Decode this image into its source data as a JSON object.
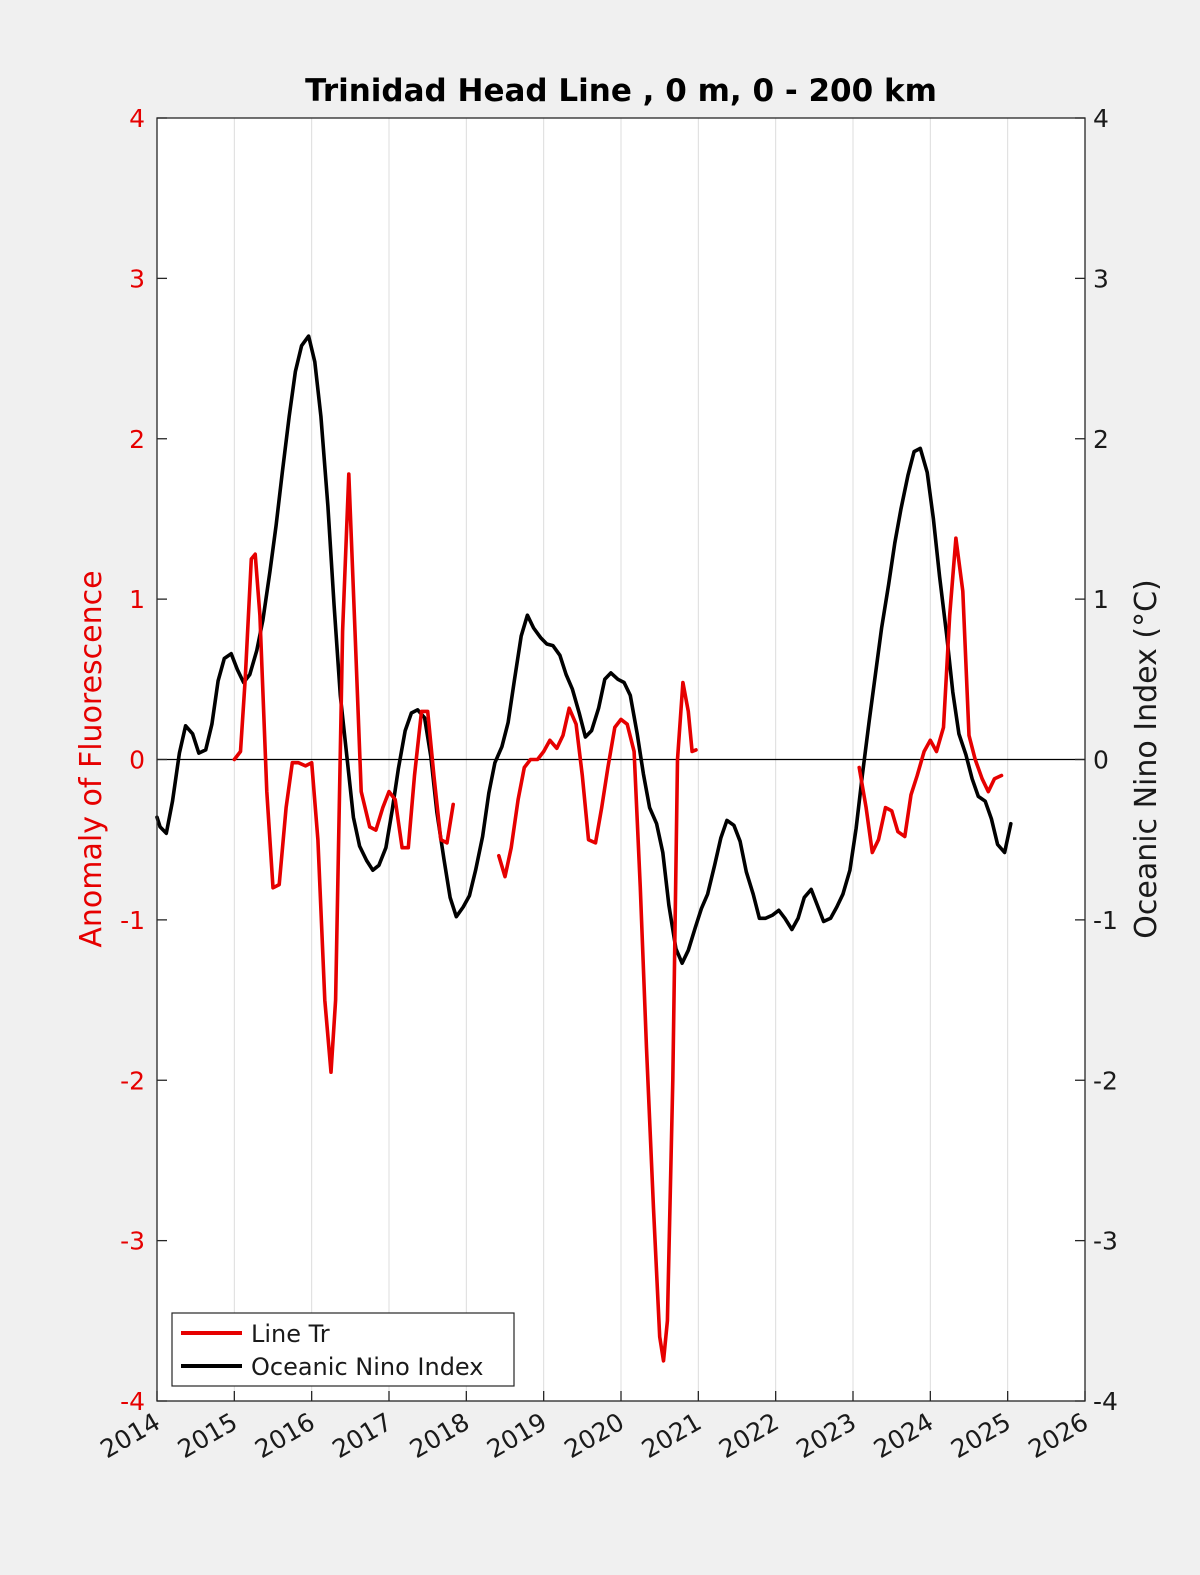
{
  "chart_data": {
    "type": "line",
    "title": "Trinidad Head Line , 0 m, 0 - 200 km",
    "ylabel_left": "Anomaly of Fluorescence",
    "ylabel_right": "Oceanic Nino Index (°C)",
    "xlim": [
      2014,
      2026
    ],
    "ylim_left": [
      -4,
      4
    ],
    "ylim_right": [
      -4,
      4
    ],
    "x_ticks": [
      "2014",
      "2015",
      "2016",
      "2017",
      "2018",
      "2019",
      "2020",
      "2021",
      "2022",
      "2023",
      "2024",
      "2025",
      "2026"
    ],
    "y_ticks_left": [
      "4",
      "3",
      "2",
      "1",
      "0",
      "-1",
      "-2",
      "-3",
      "-4"
    ],
    "y_ticks_right": [
      "4",
      "3",
      "2",
      "1",
      "0",
      "-1",
      "-2",
      "-3",
      "-4"
    ],
    "vertical_grid": true,
    "zero_line": true,
    "legend_position": "bottom-left",
    "colors": {
      "line_tr": "#e60000",
      "oni": "#000000",
      "zero_line": "#000000",
      "grid": "#dcdcdc"
    },
    "series": [
      {
        "name": "Line Tr",
        "axis": "left",
        "segments": [
          [
            [
              2015.0,
              0.0
            ],
            [
              2015.08,
              0.05
            ],
            [
              2015.14,
              0.5
            ],
            [
              2015.22,
              1.25
            ],
            [
              2015.27,
              1.28
            ],
            [
              2015.33,
              0.9
            ],
            [
              2015.42,
              -0.2
            ],
            [
              2015.5,
              -0.8
            ],
            [
              2015.58,
              -0.78
            ],
            [
              2015.67,
              -0.3
            ],
            [
              2015.75,
              -0.02
            ],
            [
              2015.83,
              -0.02
            ],
            [
              2015.92,
              -0.04
            ],
            [
              2016.0,
              -0.02
            ],
            [
              2016.08,
              -0.5
            ],
            [
              2016.17,
              -1.5
            ],
            [
              2016.25,
              -1.95
            ],
            [
              2016.31,
              -1.5
            ],
            [
              2016.4,
              0.8
            ],
            [
              2016.48,
              1.78
            ],
            [
              2016.56,
              0.8
            ],
            [
              2016.64,
              -0.2
            ],
            [
              2016.75,
              -0.42
            ],
            [
              2016.83,
              -0.44
            ],
            [
              2016.92,
              -0.3
            ],
            [
              2017.0,
              -0.2
            ],
            [
              2017.08,
              -0.25
            ],
            [
              2017.17,
              -0.55
            ],
            [
              2017.25,
              -0.55
            ],
            [
              2017.33,
              -0.1
            ],
            [
              2017.42,
              0.3
            ],
            [
              2017.5,
              0.3
            ],
            [
              2017.58,
              -0.1
            ],
            [
              2017.67,
              -0.5
            ],
            [
              2017.75,
              -0.52
            ],
            [
              2017.83,
              -0.28
            ]
          ],
          [
            [
              2018.42,
              -0.6
            ],
            [
              2018.5,
              -0.73
            ],
            [
              2018.58,
              -0.55
            ],
            [
              2018.67,
              -0.25
            ],
            [
              2018.75,
              -0.05
            ],
            [
              2018.83,
              0.0
            ],
            [
              2018.92,
              0.0
            ],
            [
              2019.0,
              0.05
            ],
            [
              2019.08,
              0.12
            ],
            [
              2019.17,
              0.07
            ],
            [
              2019.25,
              0.15
            ],
            [
              2019.33,
              0.32
            ],
            [
              2019.42,
              0.22
            ],
            [
              2019.5,
              -0.1
            ],
            [
              2019.58,
              -0.5
            ],
            [
              2019.67,
              -0.52
            ],
            [
              2019.75,
              -0.3
            ],
            [
              2019.83,
              -0.05
            ],
            [
              2019.92,
              0.2
            ],
            [
              2020.0,
              0.25
            ],
            [
              2020.08,
              0.22
            ],
            [
              2020.17,
              0.05
            ],
            [
              2020.25,
              -0.8
            ],
            [
              2020.33,
              -1.8
            ],
            [
              2020.42,
              -2.8
            ],
            [
              2020.5,
              -3.6
            ],
            [
              2020.55,
              -3.75
            ],
            [
              2020.6,
              -3.5
            ],
            [
              2020.67,
              -2.0
            ],
            [
              2020.73,
              0.0
            ],
            [
              2020.8,
              0.48
            ],
            [
              2020.87,
              0.3
            ],
            [
              2020.92,
              0.05
            ],
            [
              2020.97,
              0.06
            ]
          ],
          [
            [
              2023.08,
              -0.05
            ],
            [
              2023.17,
              -0.3
            ],
            [
              2023.25,
              -0.58
            ],
            [
              2023.33,
              -0.5
            ],
            [
              2023.42,
              -0.3
            ],
            [
              2023.5,
              -0.32
            ],
            [
              2023.58,
              -0.45
            ],
            [
              2023.67,
              -0.48
            ],
            [
              2023.75,
              -0.22
            ],
            [
              2023.83,
              -0.1
            ],
            [
              2023.92,
              0.05
            ],
            [
              2024.0,
              0.12
            ],
            [
              2024.08,
              0.05
            ],
            [
              2024.17,
              0.2
            ],
            [
              2024.25,
              0.9
            ],
            [
              2024.33,
              1.38
            ],
            [
              2024.42,
              1.05
            ],
            [
              2024.5,
              0.15
            ],
            [
              2024.58,
              0.0
            ],
            [
              2024.67,
              -0.12
            ],
            [
              2024.75,
              -0.2
            ],
            [
              2024.83,
              -0.12
            ],
            [
              2024.92,
              -0.1
            ]
          ]
        ]
      },
      {
        "name": "Oceanic Nino Index",
        "axis": "right",
        "segments": [
          [
            [
              2014.0,
              -0.36
            ],
            [
              2014.04,
              -0.42
            ],
            [
              2014.12,
              -0.46
            ],
            [
              2014.2,
              -0.26
            ],
            [
              2014.29,
              0.04
            ],
            [
              2014.37,
              0.21
            ],
            [
              2014.46,
              0.16
            ],
            [
              2014.54,
              0.04
            ],
            [
              2014.63,
              0.06
            ],
            [
              2014.71,
              0.22
            ],
            [
              2014.79,
              0.49
            ],
            [
              2014.87,
              0.63
            ],
            [
              2014.96,
              0.66
            ],
            [
              2015.04,
              0.56
            ],
            [
              2015.12,
              0.48
            ],
            [
              2015.2,
              0.53
            ],
            [
              2015.29,
              0.68
            ],
            [
              2015.37,
              0.87
            ],
            [
              2015.46,
              1.17
            ],
            [
              2015.54,
              1.46
            ],
            [
              2015.62,
              1.79
            ],
            [
              2015.71,
              2.14
            ],
            [
              2015.79,
              2.42
            ],
            [
              2015.87,
              2.58
            ],
            [
              2015.96,
              2.64
            ],
            [
              2016.04,
              2.48
            ],
            [
              2016.12,
              2.14
            ],
            [
              2016.21,
              1.58
            ],
            [
              2016.29,
              0.96
            ],
            [
              2016.37,
              0.4
            ],
            [
              2016.46,
              0.0
            ],
            [
              2016.54,
              -0.36
            ],
            [
              2016.62,
              -0.54
            ],
            [
              2016.71,
              -0.63
            ],
            [
              2016.79,
              -0.69
            ],
            [
              2016.87,
              -0.66
            ],
            [
              2016.96,
              -0.55
            ],
            [
              2017.04,
              -0.32
            ],
            [
              2017.12,
              -0.06
            ],
            [
              2017.21,
              0.18
            ],
            [
              2017.29,
              0.29
            ],
            [
              2017.37,
              0.31
            ],
            [
              2017.46,
              0.26
            ],
            [
              2017.54,
              0.02
            ],
            [
              2017.62,
              -0.33
            ],
            [
              2017.71,
              -0.62
            ],
            [
              2017.79,
              -0.86
            ],
            [
              2017.87,
              -0.98
            ],
            [
              2017.96,
              -0.92
            ],
            [
              2018.04,
              -0.85
            ],
            [
              2018.12,
              -0.69
            ],
            [
              2018.21,
              -0.48
            ],
            [
              2018.29,
              -0.21
            ],
            [
              2018.37,
              -0.02
            ],
            [
              2018.46,
              0.08
            ],
            [
              2018.54,
              0.23
            ],
            [
              2018.62,
              0.49
            ],
            [
              2018.71,
              0.77
            ],
            [
              2018.79,
              0.9
            ],
            [
              2018.87,
              0.82
            ],
            [
              2018.96,
              0.76
            ],
            [
              2019.04,
              0.72
            ],
            [
              2019.12,
              0.71
            ],
            [
              2019.21,
              0.65
            ],
            [
              2019.29,
              0.53
            ],
            [
              2019.37,
              0.44
            ],
            [
              2019.46,
              0.29
            ],
            [
              2019.54,
              0.14
            ],
            [
              2019.62,
              0.18
            ],
            [
              2019.71,
              0.32
            ],
            [
              2019.79,
              0.5
            ],
            [
              2019.87,
              0.54
            ],
            [
              2019.96,
              0.5
            ],
            [
              2020.04,
              0.48
            ],
            [
              2020.12,
              0.4
            ],
            [
              2020.21,
              0.16
            ],
            [
              2020.29,
              -0.09
            ],
            [
              2020.37,
              -0.3
            ],
            [
              2020.46,
              -0.4
            ],
            [
              2020.54,
              -0.58
            ],
            [
              2020.62,
              -0.91
            ],
            [
              2020.71,
              -1.18
            ],
            [
              2020.79,
              -1.27
            ],
            [
              2020.87,
              -1.19
            ],
            [
              2020.96,
              -1.05
            ],
            [
              2021.04,
              -0.93
            ],
            [
              2021.12,
              -0.84
            ],
            [
              2021.21,
              -0.66
            ],
            [
              2021.29,
              -0.49
            ],
            [
              2021.37,
              -0.38
            ],
            [
              2021.46,
              -0.41
            ],
            [
              2021.54,
              -0.51
            ],
            [
              2021.62,
              -0.7
            ],
            [
              2021.71,
              -0.84
            ],
            [
              2021.79,
              -0.99
            ],
            [
              2021.87,
              -0.99
            ],
            [
              2021.96,
              -0.97
            ],
            [
              2022.04,
              -0.94
            ],
            [
              2022.12,
              -0.99
            ],
            [
              2022.21,
              -1.06
            ],
            [
              2022.29,
              -0.99
            ],
            [
              2022.37,
              -0.86
            ],
            [
              2022.46,
              -0.81
            ],
            [
              2022.54,
              -0.91
            ],
            [
              2022.62,
              -1.01
            ],
            [
              2022.71,
              -0.99
            ],
            [
              2022.79,
              -0.92
            ],
            [
              2022.87,
              -0.84
            ],
            [
              2022.96,
              -0.69
            ],
            [
              2023.04,
              -0.43
            ],
            [
              2023.12,
              -0.1
            ],
            [
              2023.21,
              0.24
            ],
            [
              2023.29,
              0.53
            ],
            [
              2023.37,
              0.82
            ],
            [
              2023.46,
              1.09
            ],
            [
              2023.54,
              1.35
            ],
            [
              2023.62,
              1.56
            ],
            [
              2023.71,
              1.77
            ],
            [
              2023.79,
              1.92
            ],
            [
              2023.87,
              1.94
            ],
            [
              2023.96,
              1.79
            ],
            [
              2024.04,
              1.5
            ],
            [
              2024.12,
              1.14
            ],
            [
              2024.21,
              0.78
            ],
            [
              2024.29,
              0.42
            ],
            [
              2024.37,
              0.16
            ],
            [
              2024.46,
              0.03
            ],
            [
              2024.54,
              -0.12
            ],
            [
              2024.62,
              -0.23
            ],
            [
              2024.71,
              -0.26
            ],
            [
              2024.79,
              -0.37
            ],
            [
              2024.87,
              -0.53
            ],
            [
              2024.96,
              -0.58
            ],
            [
              2025.04,
              -0.4
            ]
          ]
        ]
      }
    ]
  }
}
